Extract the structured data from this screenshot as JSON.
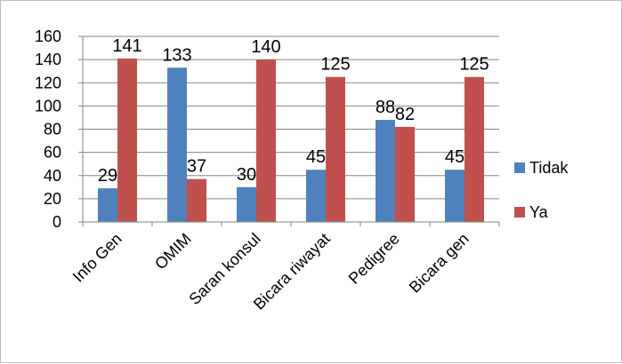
{
  "chart_data": {
    "type": "bar",
    "categories": [
      "Info Gen",
      "OMIM",
      "Saran  konsul",
      "Bicara riwayat",
      "Pedigree",
      "Bicara gen"
    ],
    "series": [
      {
        "name": "Tidak",
        "values": [
          29,
          133,
          30,
          45,
          88,
          45
        ],
        "color": "#4F81BD"
      },
      {
        "name": "Ya",
        "values": [
          141,
          37,
          140,
          125,
          82,
          125
        ],
        "color": "#C0504D"
      }
    ],
    "ylim": [
      0,
      160
    ],
    "yticks": [
      0,
      20,
      40,
      60,
      80,
      100,
      120,
      140,
      160
    ],
    "grid": true,
    "legend": "right"
  }
}
